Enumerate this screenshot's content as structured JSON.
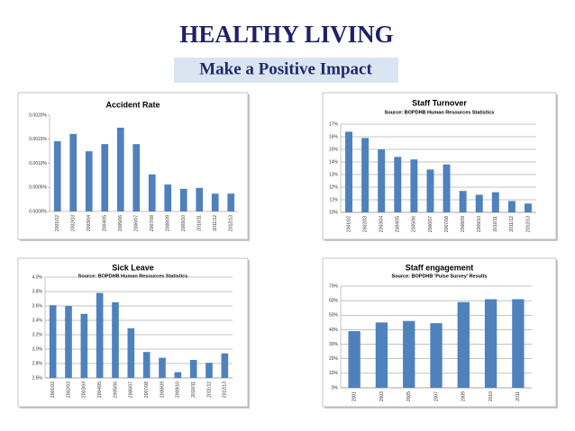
{
  "header": {
    "title": "HEALTHY LIVING",
    "subtitle": "Make a Positive Impact"
  },
  "chart_data": [
    {
      "type": "bar",
      "title": "Accident Rate",
      "color": "#4f81bd",
      "grid": false,
      "categories": [
        "2001/02",
        "2002/03",
        "2003/04",
        "2004/05",
        "2005/06",
        "2006/07",
        "2007/08",
        "2008/09",
        "2009/10",
        "2010/11",
        "2011/12",
        "2012/13"
      ],
      "values": [
        0.00146,
        0.00161,
        0.00125,
        0.0014,
        0.00174,
        0.0014,
        0.00077,
        0.00056,
        0.00047,
        0.00049,
        0.00037,
        0.00037
      ],
      "ylim": [
        0,
        0.002
      ],
      "yticks": [
        {
          "value": 0,
          "label": "0.0000%"
        },
        {
          "value": 0.0005,
          "label": "0.0005%"
        },
        {
          "value": 0.001,
          "label": "0.0010%"
        },
        {
          "value": 0.0015,
          "label": "0.0015%"
        },
        {
          "value": 0.002,
          "label": "0.0020%"
        }
      ]
    },
    {
      "type": "bar",
      "title": "Staff Turnover",
      "subtitle": "Source: BOPDHB Human Resources Statistics",
      "color": "#4f81bd",
      "grid": true,
      "categories": [
        "2001/02",
        "2002/03",
        "2003/04",
        "2004/05",
        "2005/06",
        "2006/07",
        "2007/08",
        "2008/09",
        "2009/10",
        "2010/11",
        "2011/12",
        "2012/13"
      ],
      "values": [
        16.4,
        15.9,
        15.0,
        14.4,
        14.2,
        13.4,
        13.8,
        11.7,
        11.4,
        11.6,
        10.9,
        10.7
      ],
      "ylim": [
        10,
        17
      ],
      "yticks": [
        {
          "value": 10,
          "label": "10%"
        },
        {
          "value": 11,
          "label": "11%"
        },
        {
          "value": 12,
          "label": "12%"
        },
        {
          "value": 13,
          "label": "13%"
        },
        {
          "value": 14,
          "label": "14%"
        },
        {
          "value": 15,
          "label": "15%"
        },
        {
          "value": 16,
          "label": "16%"
        },
        {
          "value": 17,
          "label": "17%"
        }
      ]
    },
    {
      "type": "bar",
      "title": "Sick Leave",
      "subtitle": "Source: BOPDHB Human Resources Statistics",
      "color": "#4f81bd",
      "grid": true,
      "categories": [
        "2001/02",
        "2002/03",
        "2003/04",
        "2004/05",
        "2005/06",
        "2006/07",
        "2007/08",
        "2008/09",
        "2009/10",
        "2010/11",
        "2011/12",
        "2012/13"
      ],
      "values": [
        3.61,
        3.6,
        3.49,
        3.78,
        3.65,
        3.29,
        2.96,
        2.88,
        2.68,
        2.85,
        2.81,
        2.94
      ],
      "ylim": [
        2.6,
        4.0
      ],
      "yticks": [
        {
          "value": 2.6,
          "label": "2.6%"
        },
        {
          "value": 2.8,
          "label": "2.8%"
        },
        {
          "value": 3.0,
          "label": "3.0%"
        },
        {
          "value": 3.2,
          "label": "3.2%"
        },
        {
          "value": 3.4,
          "label": "3.4%"
        },
        {
          "value": 3.6,
          "label": "3.6%"
        },
        {
          "value": 3.8,
          "label": "3.8%"
        },
        {
          "value": 4.0,
          "label": "4.0%"
        }
      ]
    },
    {
      "type": "bar",
      "title": "Staff engagement",
      "subtitle": "Source: BOPDHB 'Pulse Survey' Results",
      "color": "#4f81bd",
      "grid": true,
      "categories": [
        "2001",
        "2003",
        "2005",
        "2007",
        "2009",
        "2010",
        "2011"
      ],
      "values": [
        39,
        45,
        46,
        44.5,
        59,
        61,
        61
      ],
      "ylim": [
        0,
        70
      ],
      "yticks": [
        {
          "value": 0,
          "label": "0%"
        },
        {
          "value": 10,
          "label": "10%"
        },
        {
          "value": 20,
          "label": "20%"
        },
        {
          "value": 30,
          "label": "30%"
        },
        {
          "value": 40,
          "label": "40%"
        },
        {
          "value": 50,
          "label": "50%"
        },
        {
          "value": 60,
          "label": "60%"
        },
        {
          "value": 70,
          "label": "70%"
        }
      ]
    }
  ]
}
